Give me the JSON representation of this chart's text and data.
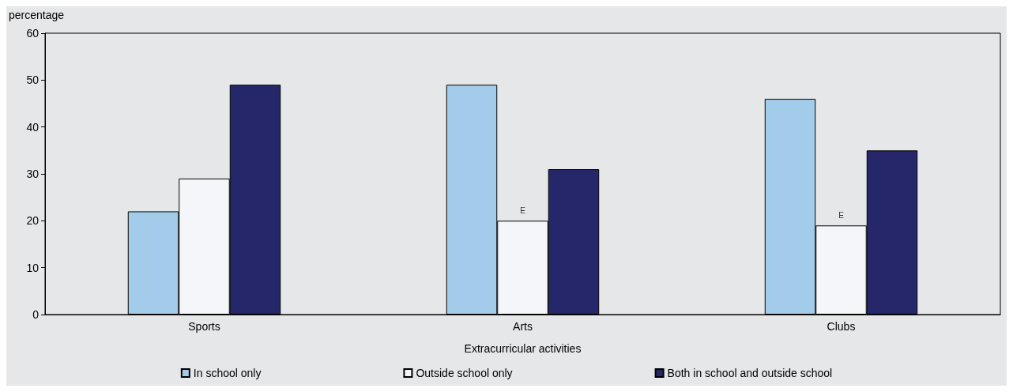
{
  "chart_data": {
    "type": "bar",
    "ylabel": "percentage",
    "xlabel": "Extracurricular activities",
    "categories": [
      "Sports",
      "Arts",
      "Clubs"
    ],
    "series": [
      {
        "name": "In school only",
        "color": "#a3cbea",
        "values": [
          22,
          49,
          46
        ]
      },
      {
        "name": "Outside school only",
        "color": "#f4f6fa",
        "values": [
          29,
          20,
          19
        ]
      },
      {
        "name": "Both in school and outside school",
        "color": "#26276b",
        "values": [
          49,
          31,
          35
        ]
      }
    ],
    "annotations": [
      {
        "text": "E",
        "x": "Arts",
        "y": 20
      },
      {
        "text": "E",
        "x": "Clubs",
        "y": 19
      }
    ],
    "ylim": [
      0,
      60
    ],
    "yticks": [
      0,
      10,
      20,
      30,
      40,
      50,
      60
    ],
    "grid": false,
    "legend": "bottom"
  }
}
